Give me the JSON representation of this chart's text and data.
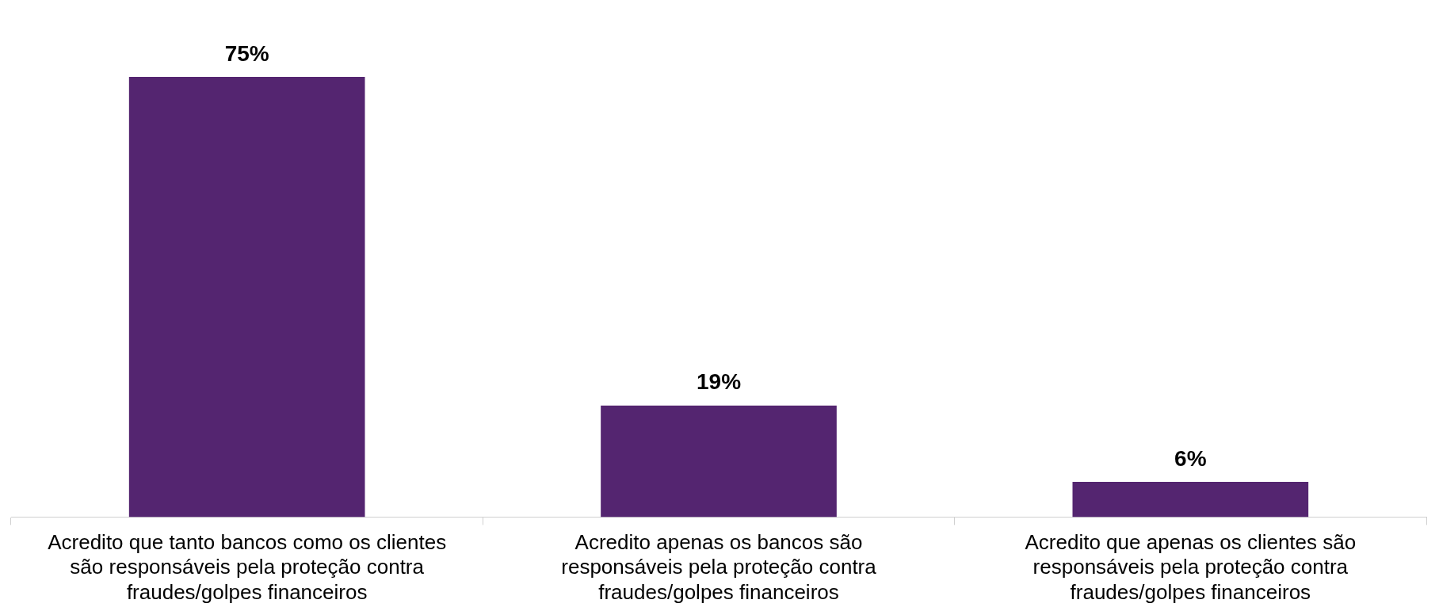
{
  "chart_data": {
    "type": "bar",
    "categories": [
      "Acredito que tanto bancos como os clientes são responsáveis pela proteção contra fraudes/golpes financeiros",
      "Acredito apenas os bancos são responsáveis pela proteção contra fraudes/golpes financeiros",
      "Acredito que apenas os clientes são responsáveis pela proteção contra fraudes/golpes financeiros"
    ],
    "values": [
      75,
      19,
      6
    ],
    "color": "#542570",
    "value_labels": [
      "75%",
      "19%",
      "6%"
    ],
    "tick_labels": "x",
    "grid": false,
    "legend": false
  }
}
